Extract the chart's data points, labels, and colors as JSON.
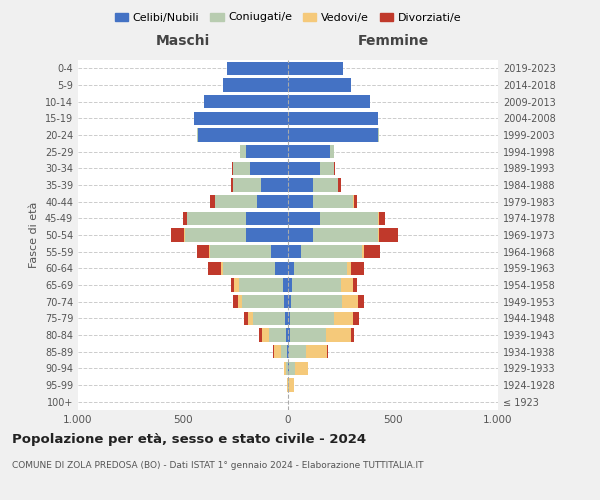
{
  "age_groups": [
    "100+",
    "95-99",
    "90-94",
    "85-89",
    "80-84",
    "75-79",
    "70-74",
    "65-69",
    "60-64",
    "55-59",
    "50-54",
    "45-49",
    "40-44",
    "35-39",
    "30-34",
    "25-29",
    "20-24",
    "15-19",
    "10-14",
    "5-9",
    "0-4"
  ],
  "birth_years": [
    "≤ 1923",
    "1924-1928",
    "1929-1933",
    "1934-1938",
    "1939-1943",
    "1944-1948",
    "1949-1953",
    "1954-1958",
    "1959-1963",
    "1964-1968",
    "1969-1973",
    "1974-1978",
    "1979-1983",
    "1984-1988",
    "1989-1993",
    "1994-1998",
    "1999-2003",
    "2004-2008",
    "2009-2013",
    "2014-2018",
    "2019-2023"
  ],
  "maschi": {
    "celibi": [
      0,
      0,
      0,
      5,
      10,
      15,
      20,
      25,
      60,
      80,
      200,
      200,
      150,
      130,
      180,
      200,
      430,
      450,
      400,
      310,
      290
    ],
    "coniugati": [
      0,
      2,
      10,
      30,
      80,
      150,
      200,
      210,
      250,
      290,
      290,
      280,
      200,
      130,
      80,
      30,
      5,
      0,
      0,
      0,
      0
    ],
    "vedove": [
      0,
      2,
      10,
      30,
      35,
      25,
      20,
      20,
      10,
      5,
      5,
      0,
      0,
      0,
      0,
      0,
      0,
      0,
      0,
      0,
      0
    ],
    "divorziate": [
      0,
      0,
      0,
      5,
      15,
      20,
      20,
      15,
      60,
      60,
      60,
      20,
      20,
      10,
      5,
      0,
      0,
      0,
      0,
      0,
      0
    ]
  },
  "femmine": {
    "celibi": [
      0,
      2,
      5,
      5,
      10,
      10,
      15,
      20,
      30,
      60,
      120,
      150,
      120,
      120,
      150,
      200,
      430,
      430,
      390,
      300,
      260
    ],
    "coniugati": [
      0,
      5,
      30,
      80,
      170,
      210,
      240,
      230,
      250,
      290,
      310,
      280,
      190,
      120,
      70,
      20,
      5,
      0,
      0,
      0,
      0
    ],
    "vedove": [
      2,
      20,
      60,
      100,
      120,
      90,
      80,
      60,
      20,
      10,
      5,
      5,
      5,
      0,
      0,
      0,
      0,
      0,
      0,
      0,
      0
    ],
    "divorziate": [
      0,
      0,
      0,
      5,
      15,
      30,
      25,
      20,
      60,
      80,
      90,
      25,
      15,
      10,
      5,
      0,
      0,
      0,
      0,
      0,
      0
    ]
  },
  "colors": {
    "celibi": "#4472C4",
    "coniugati": "#B8CCB0",
    "vedove": "#F5C97A",
    "divorziate": "#C0392B"
  },
  "xlim": 1000,
  "title": "Popolazione per età, sesso e stato civile - 2024",
  "subtitle": "COMUNE DI ZOLA PREDOSA (BO) - Dati ISTAT 1° gennaio 2024 - Elaborazione TUTTITALIA.IT",
  "ylabel": "Fasce di età",
  "xlabel_left": "Maschi",
  "xlabel_right": "Femmine",
  "bg_color": "#f0f0f0",
  "plot_bg": "#ffffff"
}
